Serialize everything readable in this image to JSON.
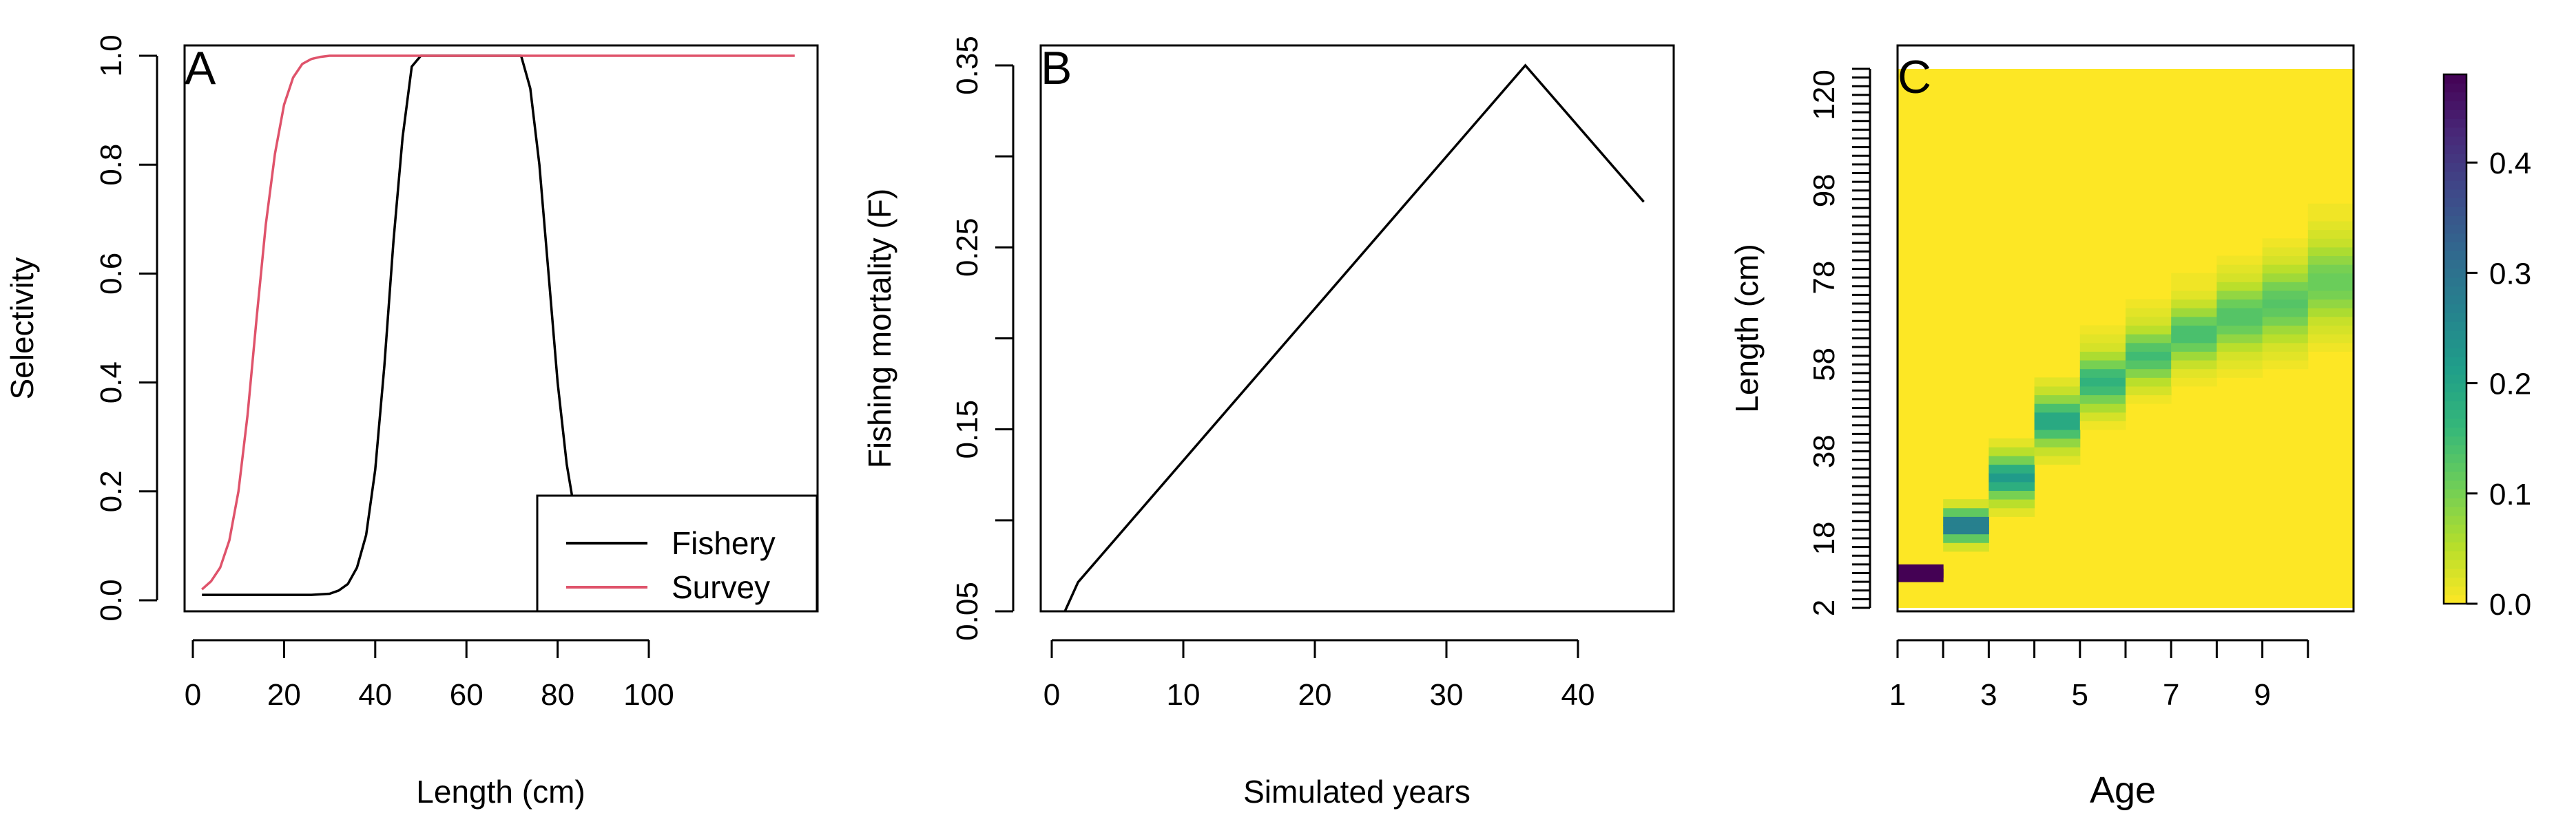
{
  "chart_data": [
    {
      "type": "line",
      "panel": "A",
      "xlabel": "Length (cm)",
      "ylabel": "Selectivity",
      "xlim": [
        0,
        130
      ],
      "ylim": [
        0,
        1
      ],
      "x_ticks": [
        0,
        20,
        40,
        60,
        80,
        100
      ],
      "y_ticks": [
        0.0,
        0.2,
        0.4,
        0.6,
        0.8,
        1.0
      ],
      "x_tick_labels": [
        "0",
        "20",
        "40",
        "60",
        "80",
        "100"
      ],
      "y_tick_labels": [
        "0.0",
        "0.2",
        "0.4",
        "0.6",
        "0.8",
        "1.0"
      ],
      "legend": {
        "placement": "bottom-right",
        "entries": [
          "Fishery",
          "Survey"
        ]
      },
      "series": [
        {
          "name": "Fishery",
          "color": "#000000",
          "x": [
            2,
            26,
            30,
            32,
            34,
            36,
            38,
            40,
            42,
            44,
            46,
            48,
            50,
            72,
            74,
            76,
            78,
            80,
            82,
            84,
            86
          ],
          "y": [
            0.01,
            0.01,
            0.012,
            0.018,
            0.03,
            0.06,
            0.12,
            0.24,
            0.43,
            0.66,
            0.85,
            0.98,
            1.0,
            1.0,
            0.94,
            0.8,
            0.6,
            0.4,
            0.25,
            0.15,
            0.1
          ]
        },
        {
          "name": "Survey",
          "color": "#DF536B",
          "x": [
            2,
            4,
            6,
            8,
            10,
            12,
            14,
            16,
            18,
            20,
            22,
            24,
            26,
            28,
            30,
            32,
            36,
            40,
            132
          ],
          "y": [
            0.02,
            0.035,
            0.06,
            0.11,
            0.2,
            0.34,
            0.52,
            0.69,
            0.82,
            0.91,
            0.96,
            0.985,
            0.994,
            0.998,
            1.0,
            1.0,
            1.0,
            1.0,
            1.0
          ]
        }
      ]
    },
    {
      "type": "line",
      "panel": "B",
      "xlabel": "Simulated years",
      "ylabel": "Fishing mortality (F)",
      "xlim": [
        0,
        46
      ],
      "ylim": [
        0.05,
        0.35
      ],
      "x_ticks": [
        0,
        10,
        20,
        30,
        40
      ],
      "y_ticks": [
        0.05,
        0.1,
        0.15,
        0.2,
        0.25,
        0.3,
        0.35
      ],
      "x_tick_labels": [
        "0",
        "10",
        "20",
        "30",
        "40"
      ],
      "y_tick_labels": [
        "0.05",
        "",
        "0.15",
        "",
        "0.25",
        "",
        "0.35"
      ],
      "series": [
        {
          "color": "#000000",
          "x": [
            1,
            2,
            36,
            45
          ],
          "y": [
            0.05,
            0.066,
            0.35,
            0.275
          ]
        }
      ]
    },
    {
      "type": "heatmap",
      "panel": "C",
      "xlabel": "Age",
      "ylabel": "Length (cm)",
      "x_tick_labels": [
        "1",
        "3",
        "5",
        "7",
        "9"
      ],
      "y_tick_labels": [
        "2",
        "18",
        "38",
        "58",
        "78",
        "98",
        "120"
      ],
      "ages": [
        1,
        2,
        3,
        4,
        5,
        6,
        7,
        8,
        9,
        10
      ],
      "length_range": [
        2,
        126
      ],
      "cells": [
        {
          "age": 1,
          "lengths": [
            9,
            10,
            11
          ],
          "values": [
            0.48,
            0.48,
            0.48
          ]
        },
        {
          "age": 2,
          "lengths": [
            16,
            18,
            20,
            22,
            24,
            26
          ],
          "values": [
            0.03,
            0.12,
            0.27,
            0.27,
            0.12,
            0.03
          ]
        },
        {
          "age": 3,
          "lengths": [
            24,
            26,
            28,
            30,
            32,
            34,
            36,
            38,
            40
          ],
          "values": [
            0.02,
            0.05,
            0.1,
            0.18,
            0.22,
            0.18,
            0.1,
            0.05,
            0.02
          ]
        },
        {
          "age": 4,
          "lengths": [
            36,
            38,
            40,
            42,
            44,
            46,
            48,
            50,
            52,
            54
          ],
          "values": [
            0.02,
            0.04,
            0.08,
            0.14,
            0.19,
            0.19,
            0.14,
            0.08,
            0.04,
            0.02
          ]
        },
        {
          "age": 5,
          "lengths": [
            44,
            46,
            48,
            50,
            52,
            54,
            56,
            58,
            60,
            62,
            64,
            66
          ],
          "values": [
            0.01,
            0.03,
            0.06,
            0.1,
            0.15,
            0.17,
            0.15,
            0.1,
            0.06,
            0.03,
            0.02,
            0.01
          ]
        },
        {
          "age": 6,
          "lengths": [
            50,
            52,
            54,
            56,
            58,
            60,
            62,
            64,
            66,
            68,
            70,
            72
          ],
          "values": [
            0.01,
            0.03,
            0.05,
            0.09,
            0.13,
            0.15,
            0.13,
            0.09,
            0.05,
            0.03,
            0.02,
            0.01
          ]
        },
        {
          "age": 7,
          "lengths": [
            54,
            56,
            58,
            60,
            62,
            64,
            66,
            68,
            70,
            72,
            74,
            76,
            78
          ],
          "values": [
            0.01,
            0.02,
            0.04,
            0.07,
            0.11,
            0.14,
            0.14,
            0.11,
            0.07,
            0.04,
            0.02,
            0.01,
            0.01
          ]
        },
        {
          "age": 8,
          "lengths": [
            56,
            58,
            60,
            62,
            64,
            66,
            68,
            70,
            72,
            74,
            76,
            78,
            80,
            82
          ],
          "values": [
            0.01,
            0.02,
            0.03,
            0.05,
            0.08,
            0.11,
            0.13,
            0.13,
            0.11,
            0.08,
            0.05,
            0.03,
            0.02,
            0.01
          ]
        },
        {
          "age": 9,
          "lengths": [
            58,
            60,
            62,
            64,
            66,
            68,
            70,
            72,
            74,
            76,
            78,
            80,
            82,
            84,
            86
          ],
          "values": [
            0.01,
            0.02,
            0.03,
            0.05,
            0.07,
            0.1,
            0.12,
            0.13,
            0.12,
            0.1,
            0.07,
            0.05,
            0.03,
            0.02,
            0.01
          ]
        },
        {
          "age": 10,
          "lengths": [
            62,
            64,
            66,
            68,
            70,
            72,
            74,
            76,
            78,
            80,
            82,
            84,
            86,
            88,
            90,
            92,
            94
          ],
          "values": [
            0.01,
            0.02,
            0.03,
            0.04,
            0.06,
            0.08,
            0.1,
            0.11,
            0.11,
            0.1,
            0.08,
            0.06,
            0.04,
            0.03,
            0.02,
            0.01,
            0.01
          ]
        }
      ],
      "colorbar": {
        "range": [
          0,
          0.48
        ],
        "tick_labels": [
          "0.0",
          "0.1",
          "0.2",
          "0.3",
          "0.4"
        ],
        "palette": "viridis-reversed"
      }
    }
  ]
}
